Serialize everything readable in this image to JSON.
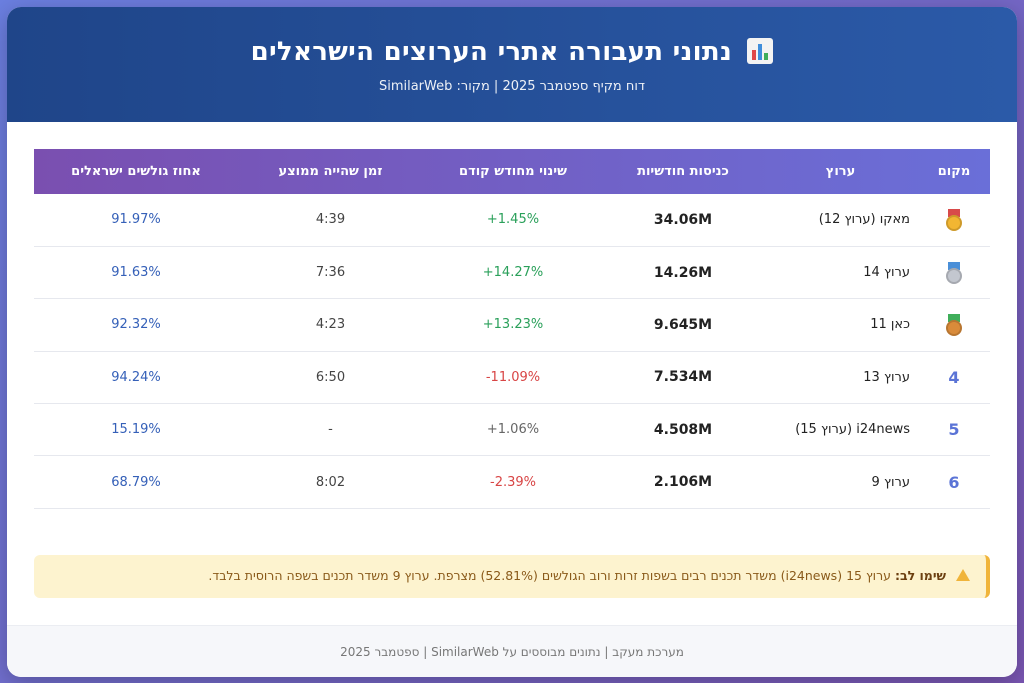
{
  "header": {
    "title": "נתוני תעבורה אתרי הערוצים הישראלים",
    "subtitle": "דוח מקיף ספטמבר 2025 | מקור: SimilarWeb"
  },
  "table": {
    "columns": [
      "מקום",
      "ערוץ",
      "כניסות חודשיות",
      "שינוי מחודש קודם",
      "זמן שהייה ממוצע",
      "אחוז גולשים ישראלים"
    ],
    "rows": [
      {
        "rank": "",
        "medal": "gold",
        "channel": "מאקו (ערוץ 12)",
        "entries": "34.06M",
        "change": "+1.45%",
        "change_dir": "pos",
        "time": "4:39",
        "israeli": "91.97%"
      },
      {
        "rank": "",
        "medal": "silver",
        "channel": "ערוץ 14",
        "entries": "14.26M",
        "change": "+14.27%",
        "change_dir": "pos",
        "time": "7:36",
        "israeli": "91.63%"
      },
      {
        "rank": "",
        "medal": "bronze",
        "channel": "כאן 11",
        "entries": "9.645M",
        "change": "+13.23%",
        "change_dir": "pos",
        "time": "4:23",
        "israeli": "92.32%"
      },
      {
        "rank": "4",
        "medal": "",
        "channel": "ערוץ 13",
        "entries": "7.534M",
        "change": "-11.09%",
        "change_dir": "neg",
        "time": "6:50",
        "israeli": "94.24%"
      },
      {
        "rank": "5",
        "medal": "",
        "channel": "i24news (ערוץ 15)",
        "entries": "4.508M",
        "change": "+1.06%",
        "change_dir": "neu",
        "time": "-",
        "israeli": "15.19%"
      },
      {
        "rank": "6",
        "medal": "",
        "channel": "ערוץ 9",
        "entries": "2.106M",
        "change": "-2.39%",
        "change_dir": "neg",
        "time": "8:02",
        "israeli": "68.79%"
      }
    ]
  },
  "notice": {
    "label": "שימו לב:",
    "text": "ערוץ 15 (i24news) משדר תכנים רבים בשפות זרות ורוב הגולשים (52.81%) מצרפת. ערוץ 9 משדר תכנים בשפה הרוסית בלבד."
  },
  "footer": {
    "text": "מערכת מעקב | נתונים מבוססים על SimilarWeb | ספטמבר 2025"
  },
  "colors": {
    "header_bg": "#1f4589",
    "positive": "#2aa05a",
    "negative": "#d84545",
    "accent": "#5b74d6"
  }
}
